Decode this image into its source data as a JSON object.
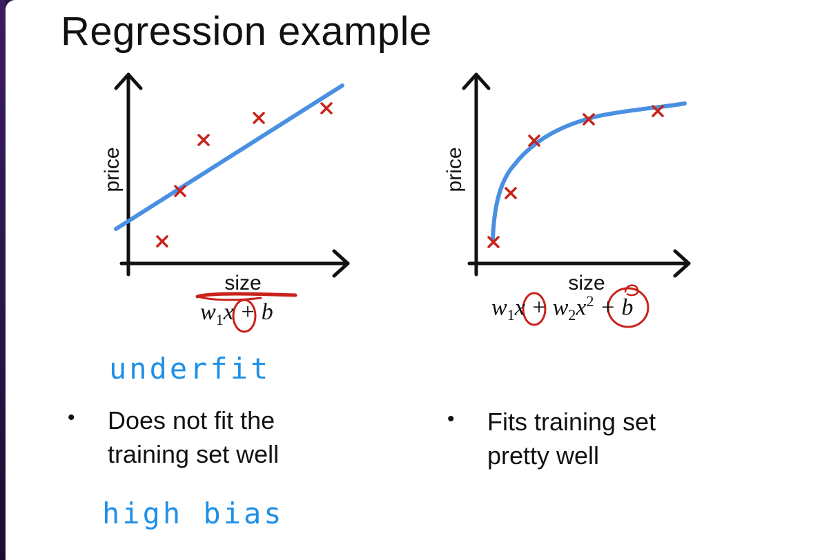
{
  "slide": {
    "title": "Regression example"
  },
  "left_panel": {
    "ylabel": "price",
    "xlabel": "size",
    "formula": {
      "w": "w",
      "w_sub": "1",
      "x": "x",
      "rest": " + b"
    },
    "annotation_top": "underfit",
    "annotation_bottom": "high bias",
    "bullet": {
      "line1": "Does not fit the",
      "line2": "training set well"
    }
  },
  "right_panel": {
    "ylabel": "price",
    "xlabel": "size",
    "formula": {
      "w1": "w",
      "w1_sub": "1",
      "x1": "x",
      "plus": " + ",
      "w2": "w",
      "w2_sub": "2",
      "x2": "x",
      "x2_sup": "2",
      "rest": " + b"
    },
    "bullet": {
      "line1": "Fits training set",
      "line2": "pretty well"
    }
  },
  "colors": {
    "fit_line": "#4a90e2",
    "data_marker": "#c8221a",
    "annotation_ink": "#1e90e8",
    "axis": "#111111"
  },
  "chart_data": [
    {
      "type": "scatter",
      "xlabel": "size",
      "ylabel": "price",
      "points": [
        [
          0.08,
          0.1
        ],
        [
          0.15,
          0.35
        ],
        [
          0.24,
          0.62
        ],
        [
          0.38,
          0.72
        ],
        [
          0.56,
          0.77
        ]
      ],
      "fit": {
        "kind": "linear",
        "from": [
          -0.04,
          0.2
        ],
        "to": [
          0.61,
          0.86
        ]
      }
    },
    {
      "type": "scatter",
      "xlabel": "size",
      "ylabel": "price",
      "points": [
        [
          0.05,
          0.1
        ],
        [
          0.1,
          0.34
        ],
        [
          0.17,
          0.61
        ],
        [
          0.31,
          0.73
        ],
        [
          0.49,
          0.77
        ]
      ],
      "fit": {
        "kind": "quadratic"
      }
    }
  ]
}
